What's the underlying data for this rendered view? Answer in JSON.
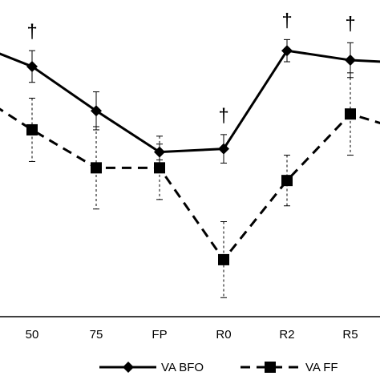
{
  "chart_data": {
    "type": "line",
    "categories": [
      "50",
      "75",
      "FP",
      "R0",
      "R2",
      "R5"
    ],
    "ylim": [
      0,
      100
    ],
    "grid": false,
    "legend": "bottom",
    "series": [
      {
        "name": "VA BFO",
        "marker": "diamond",
        "line": "solid",
        "values": [
          79,
          65,
          52,
          53,
          84,
          81
        ],
        "error": [
          5,
          6,
          2.5,
          4.5,
          3.5,
          5.5
        ],
        "continues_left": 87,
        "continues_right": 80
      },
      {
        "name": "VA FF",
        "marker": "square",
        "line": "dashed",
        "values": [
          59,
          47,
          47,
          18,
          43,
          64
        ],
        "error": [
          10,
          13,
          10,
          12,
          8,
          13
        ],
        "continues_left": 72,
        "continues_right": 58
      }
    ],
    "annotations": [
      {
        "category": "50",
        "text": "†"
      },
      {
        "category": "R0",
        "text": "†"
      },
      {
        "category": "R2",
        "text": "†"
      },
      {
        "category": "R5",
        "text": "†"
      }
    ],
    "colors": {
      "line": "#000000",
      "background": "#ffffff"
    }
  }
}
